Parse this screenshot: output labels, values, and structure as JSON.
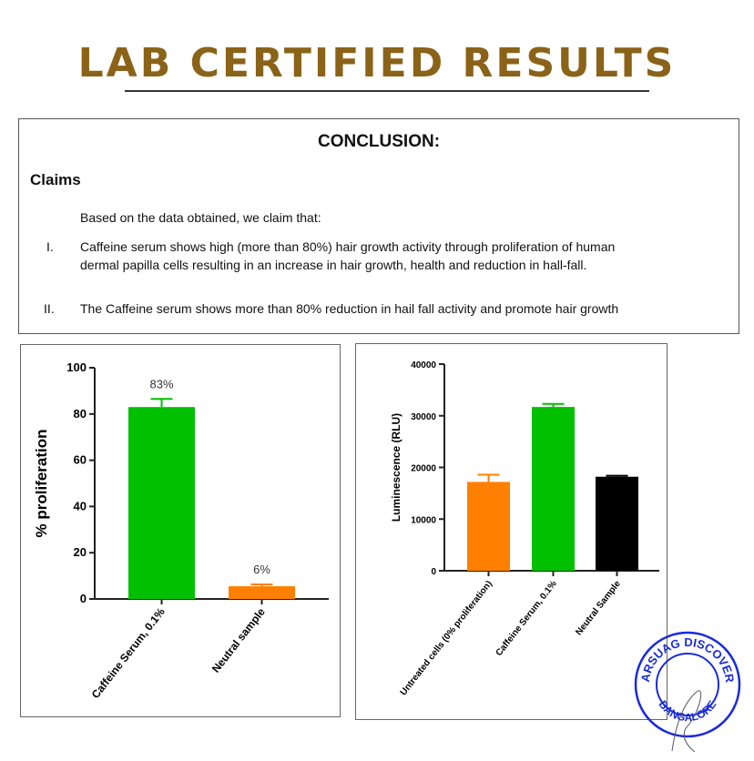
{
  "title": "LAB CERTIFIED RESULTS",
  "conclusion": {
    "heading": "CONCLUSION:",
    "claims_heading": "Claims",
    "intro": "Based on the data obtained, we claim that:",
    "items": [
      {
        "num": "I.",
        "line1": "Caffeine serum shows high (more than 80%) hair growth activity through proliferation of human",
        "line2": "dermal papilla cells resulting in an increase in hair growth, health and reduction in hall-fall."
      },
      {
        "num": "II.",
        "line1": "The Caffeine serum shows more than 80% reduction in hail fall activity and promote hair growth"
      }
    ]
  },
  "stamp": {
    "text": "SARSUAG DISCOVERY",
    "city": "BANGALORE"
  },
  "chart_data": [
    {
      "type": "bar",
      "title": "",
      "xlabel": "",
      "ylabel": "% proliferation",
      "ylim": [
        0,
        100
      ],
      "yticks": [
        0,
        20,
        40,
        60,
        80,
        100
      ],
      "categories": [
        "Caffeine Serum, 0.1%",
        "Neutral sample"
      ],
      "values": [
        83,
        5.5
      ],
      "errors": [
        3.5,
        0.8
      ],
      "data_labels": [
        "83%",
        "6%"
      ],
      "colors": [
        "#00c000",
        "#ff8000"
      ]
    },
    {
      "type": "bar",
      "title": "",
      "xlabel": "",
      "ylabel": "Luminescence (RLU)",
      "ylim": [
        0,
        40000
      ],
      "yticks": [
        0,
        10000,
        20000,
        30000,
        40000
      ],
      "categories": [
        "Untreated cells (0% proliferation)",
        "Caffeine Serum, 0.1%",
        "Neutral Sample"
      ],
      "values": [
        17200,
        31700,
        18200
      ],
      "errors": [
        1400,
        600,
        200
      ],
      "colors": [
        "#ff8000",
        "#00c000",
        "#000000"
      ]
    }
  ]
}
